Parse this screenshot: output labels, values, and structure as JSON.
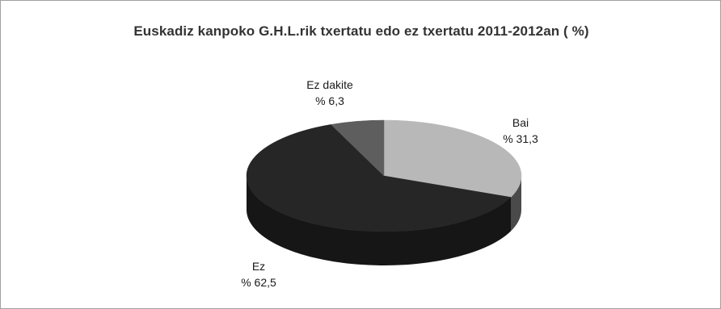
{
  "chart_data": {
    "type": "pie",
    "title": "Euskadiz kanpoko G.H.L.rik txertatu edo ez txertatu 2011-2012an ( %)",
    "style": "3d",
    "slices": [
      {
        "label": "Bai",
        "value": 31.3,
        "value_label": "% 31,3",
        "color": "#b8b8b8",
        "side_color": "#4a4a4a"
      },
      {
        "label": "Ez",
        "value": 62.5,
        "value_label": "% 62,5",
        "color": "#262626",
        "side_color": "#161616"
      },
      {
        "label": "Ez dakite",
        "value": 6.3,
        "value_label": "% 6,3",
        "color": "#5e5e5e",
        "side_color": "#333333"
      }
    ]
  }
}
